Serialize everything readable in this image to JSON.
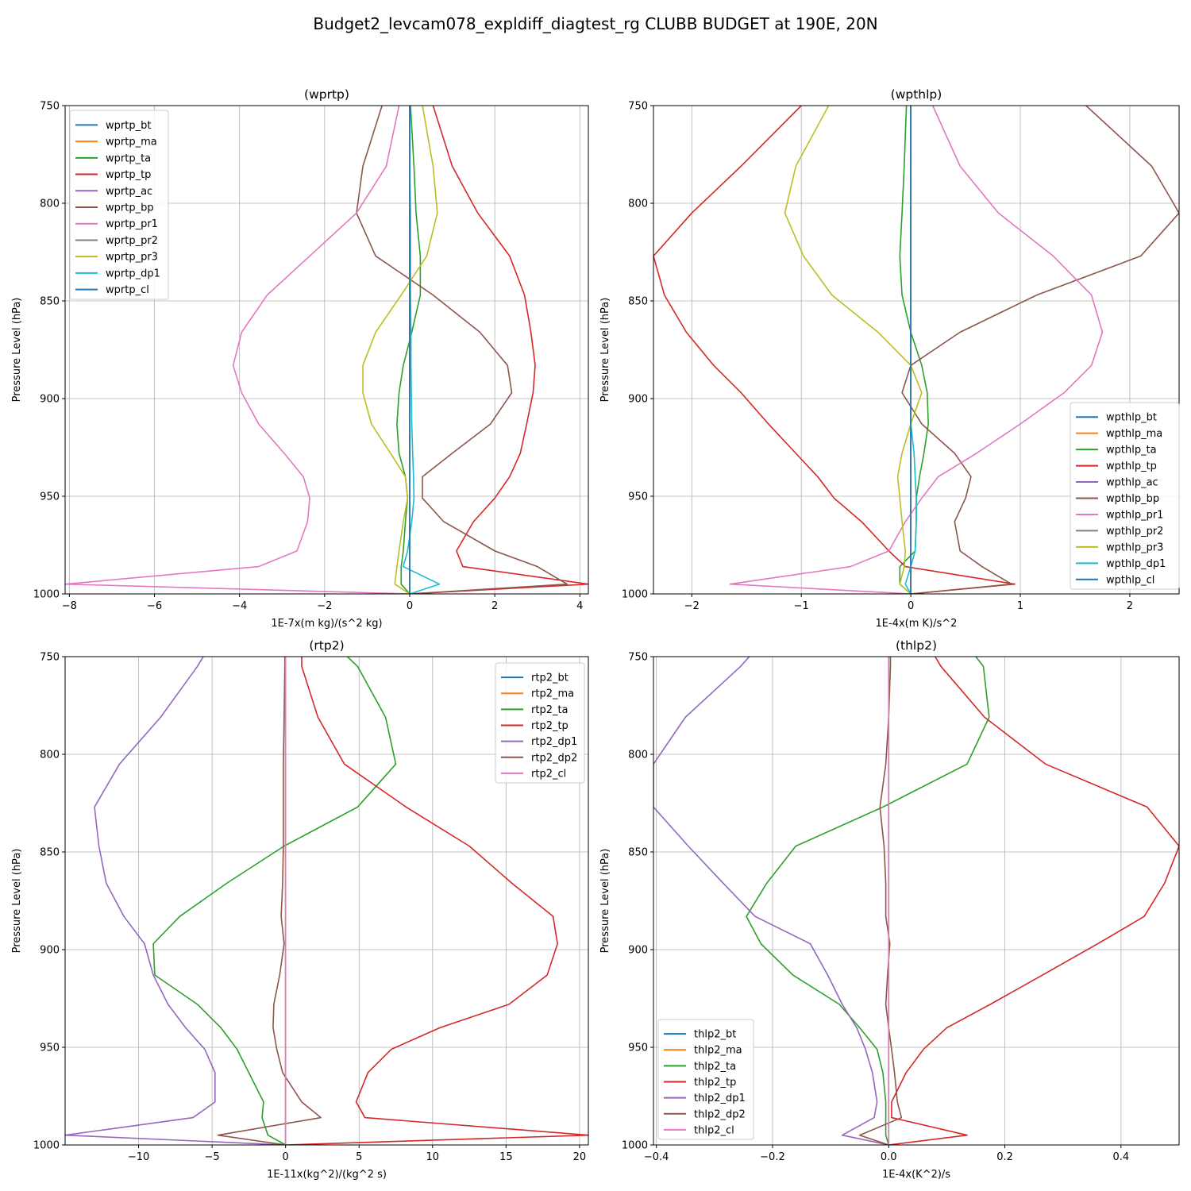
{
  "figure_title": "Budget2_levcam078_expldiff_diagtest_rg CLUBB BUDGET at 190E, 20N",
  "chart_data": [
    {
      "type": "line",
      "title": "(wprtp)",
      "xlabel": "1E-7x(m kg)/(s^2 kg)",
      "ylabel": "Pressure Level (hPa)",
      "xlim": [
        -8.1,
        4.2
      ],
      "ylim": [
        1000,
        750
      ],
      "xticks": [
        -8,
        -6,
        -4,
        -2,
        0,
        2,
        4
      ],
      "xtick_labels": [
        "−8",
        "−6",
        "−4",
        "−2",
        "0",
        "2",
        "4"
      ],
      "yticks": [
        750,
        800,
        850,
        900,
        950,
        1000
      ],
      "ytick_labels": [
        "750",
        "800",
        "850",
        "900",
        "950",
        "1000"
      ],
      "grid": true,
      "legend_position": "upper-left",
      "levels": [
        750,
        781,
        805,
        827,
        847,
        866,
        883,
        897,
        913,
        928,
        940,
        951,
        963,
        978,
        986,
        995,
        1000
      ],
      "series": [
        {
          "name": "wprtp_bt",
          "color": "#1f77b4",
          "values": [
            0,
            0,
            0,
            0,
            0,
            0,
            0,
            0,
            0,
            0,
            0,
            0,
            0,
            0,
            0,
            0,
            0
          ]
        },
        {
          "name": "wprtp_ma",
          "color": "#ff7f0e",
          "values": [
            0,
            0,
            0,
            0,
            0,
            0,
            0,
            0,
            0,
            0,
            0,
            0,
            0,
            0,
            0,
            0,
            0
          ]
        },
        {
          "name": "wprtp_ta",
          "color": "#2ca02c",
          "values": [
            0.02,
            0.1,
            0.15,
            0.25,
            0.25,
            0.05,
            -0.15,
            -0.25,
            -0.3,
            -0.25,
            -0.1,
            -0.05,
            -0.1,
            -0.15,
            -0.2,
            -0.2,
            0
          ]
        },
        {
          "name": "wprtp_tp",
          "color": "#d62728",
          "values": [
            0.55,
            1.0,
            1.6,
            2.35,
            2.7,
            2.85,
            2.95,
            2.9,
            2.75,
            2.6,
            2.35,
            2.0,
            1.5,
            1.1,
            1.25,
            4.2,
            0
          ]
        },
        {
          "name": "wprtp_ac",
          "color": "#9467bd",
          "values": [
            0,
            0,
            0,
            0,
            0,
            0,
            0,
            0,
            0,
            0,
            0,
            0,
            0,
            0,
            0,
            0,
            0
          ]
        },
        {
          "name": "wprtp_bp",
          "color": "#8c564b",
          "values": [
            -0.65,
            -1.1,
            -1.25,
            -0.8,
            0.55,
            1.65,
            2.3,
            2.4,
            1.9,
            1.0,
            0.3,
            0.3,
            0.8,
            2.0,
            3.0,
            3.7,
            0
          ]
        },
        {
          "name": "wprtp_pr1",
          "color": "#e377c2",
          "values": [
            -0.25,
            -0.55,
            -1.25,
            -2.35,
            -3.35,
            -3.95,
            -4.15,
            -3.95,
            -3.55,
            -2.95,
            -2.5,
            -2.35,
            -2.4,
            -2.65,
            -3.55,
            -8.1,
            0
          ]
        },
        {
          "name": "wprtp_pr2",
          "color": "#7f7f7f",
          "values": [
            0,
            0,
            0,
            0,
            0,
            0,
            0,
            0,
            0,
            0,
            0,
            0,
            0,
            0,
            0,
            0,
            0
          ]
        },
        {
          "name": "wprtp_pr3",
          "color": "#bcbd22",
          "values": [
            0.3,
            0.55,
            0.65,
            0.4,
            -0.2,
            -0.8,
            -1.1,
            -1.1,
            -0.9,
            -0.45,
            -0.1,
            -0.05,
            -0.15,
            -0.25,
            -0.3,
            -0.35,
            0
          ]
        },
        {
          "name": "wprtp_dp1",
          "color": "#17becf",
          "values": [
            0,
            0,
            0.02,
            0.02,
            0.02,
            0.03,
            0.03,
            0.04,
            0.05,
            0.07,
            0.09,
            0.1,
            0.05,
            -0.05,
            -0.15,
            0.7,
            0
          ]
        },
        {
          "name": "wprtp_cl",
          "color": "#1f77b4",
          "values": [
            0,
            0,
            0,
            0,
            0,
            0,
            0,
            0,
            0,
            0,
            0,
            0,
            0,
            0,
            0,
            0,
            0
          ]
        }
      ]
    },
    {
      "type": "line",
      "title": "(wpthlp)",
      "xlabel": "1E-4x(m K)/s^2",
      "ylabel": "Pressure Level (hPa)",
      "xlim": [
        -2.35,
        2.45
      ],
      "ylim": [
        1000,
        750
      ],
      "xticks": [
        -2,
        -1,
        0,
        1,
        2
      ],
      "xtick_labels": [
        "−2",
        "−1",
        "0",
        "1",
        "2"
      ],
      "yticks": [
        750,
        800,
        850,
        900,
        950,
        1000
      ],
      "ytick_labels": [
        "750",
        "800",
        "850",
        "900",
        "950",
        "1000"
      ],
      "grid": true,
      "legend_position": "lower-right",
      "levels": [
        750,
        781,
        805,
        827,
        847,
        866,
        883,
        897,
        913,
        928,
        940,
        951,
        963,
        978,
        986,
        995,
        1000
      ],
      "series": [
        {
          "name": "wpthlp_bt",
          "color": "#1f77b4",
          "values": [
            0,
            0,
            0,
            0,
            0,
            0,
            0,
            0,
            0,
            0,
            0,
            0,
            0,
            0,
            0,
            0,
            0
          ]
        },
        {
          "name": "wpthlp_ma",
          "color": "#ff7f0e",
          "values": [
            0,
            0,
            0,
            0,
            0,
            0,
            0,
            0,
            0,
            0,
            0,
            0,
            0,
            0,
            0,
            0,
            0
          ]
        },
        {
          "name": "wpthlp_ta",
          "color": "#2ca02c",
          "values": [
            -0.04,
            -0.06,
            -0.08,
            -0.1,
            -0.08,
            0,
            0.1,
            0.15,
            0.16,
            0.12,
            0.08,
            0.05,
            0.05,
            0.04,
            -0.1,
            -0.1,
            0
          ]
        },
        {
          "name": "wpthlp_tp",
          "color": "#d62728",
          "values": [
            -1.0,
            -1.55,
            -2.0,
            -2.35,
            -2.25,
            -2.05,
            -1.8,
            -1.55,
            -1.3,
            -1.05,
            -0.85,
            -0.7,
            -0.45,
            -0.2,
            -0.05,
            0.95,
            0
          ]
        },
        {
          "name": "wpthlp_ac",
          "color": "#9467bd",
          "values": [
            0,
            0,
            0,
            0,
            0,
            0,
            0,
            0,
            0,
            0,
            0,
            0,
            0,
            0,
            0,
            0,
            0
          ]
        },
        {
          "name": "wpthlp_bp",
          "color": "#8c564b",
          "values": [
            1.6,
            2.2,
            2.45,
            2.1,
            1.15,
            0.45,
            0.0,
            -0.08,
            0.1,
            0.4,
            0.55,
            0.5,
            0.4,
            0.45,
            0.65,
            0.92,
            0
          ]
        },
        {
          "name": "wpthlp_pr1",
          "color": "#e377c2",
          "values": [
            0.2,
            0.45,
            0.8,
            1.3,
            1.65,
            1.75,
            1.65,
            1.4,
            1.0,
            0.6,
            0.25,
            0.1,
            -0.05,
            -0.2,
            -0.55,
            -1.65,
            0
          ]
        },
        {
          "name": "wpthlp_pr2",
          "color": "#7f7f7f",
          "values": [
            0,
            0,
            0,
            0,
            0,
            0,
            0,
            0,
            0,
            0,
            0,
            0,
            0,
            0,
            0,
            0,
            0
          ]
        },
        {
          "name": "wpthlp_pr3",
          "color": "#bcbd22",
          "values": [
            -0.75,
            -1.05,
            -1.15,
            -0.98,
            -0.72,
            -0.3,
            0.0,
            0.1,
            0.0,
            -0.08,
            -0.12,
            -0.1,
            -0.08,
            -0.05,
            -0.06,
            -0.1,
            0
          ]
        },
        {
          "name": "wpthlp_dp1",
          "color": "#17becf",
          "values": [
            0,
            0,
            0,
            0,
            0,
            0,
            0,
            0,
            0,
            0.03,
            0.04,
            0.05,
            0.05,
            0.04,
            0.0,
            -0.05,
            0
          ]
        },
        {
          "name": "wpthlp_cl",
          "color": "#1f77b4",
          "values": [
            0,
            0,
            0,
            0,
            0,
            0,
            0,
            0,
            0,
            0,
            0,
            0,
            0,
            0,
            0,
            0,
            0
          ]
        }
      ]
    },
    {
      "type": "line",
      "title": "(rtp2)",
      "xlabel": "1E-11x(kg^2)/(kg^2 s)",
      "ylabel": "Pressure Level (hPa)",
      "xlim": [
        -15,
        20.6
      ],
      "ylim": [
        1000,
        750
      ],
      "xticks": [
        -10,
        -5,
        0,
        5,
        10,
        15,
        20
      ],
      "xtick_labels": [
        "−10",
        "−5",
        "0",
        "5",
        "10",
        "15",
        "20"
      ],
      "yticks": [
        750,
        800,
        850,
        900,
        950,
        1000
      ],
      "ytick_labels": [
        "750",
        "800",
        "850",
        "900",
        "950",
        "1000"
      ],
      "grid": true,
      "legend_position": "upper-right",
      "levels": [
        750,
        755,
        781,
        805,
        827,
        847,
        866,
        883,
        897,
        913,
        928,
        940,
        951,
        963,
        978,
        986,
        995,
        1000
      ],
      "series": [
        {
          "name": "rtp2_bt",
          "color": "#1f77b4",
          "values": [
            0,
            0,
            0,
            0,
            0,
            0,
            0,
            0,
            0,
            0,
            0,
            0,
            0,
            0,
            0,
            0,
            0,
            0
          ]
        },
        {
          "name": "rtp2_ma",
          "color": "#ff7f0e",
          "values": [
            0,
            0,
            0,
            0,
            0,
            0,
            0,
            0,
            0,
            0,
            0,
            0,
            0,
            0,
            0,
            0,
            0,
            0
          ]
        },
        {
          "name": "rtp2_ta",
          "color": "#2ca02c",
          "values": [
            4.2,
            4.9,
            6.8,
            7.5,
            4.9,
            -0.1,
            -4.0,
            -7.2,
            -9.0,
            -8.9,
            -6.0,
            -4.4,
            -3.3,
            -2.5,
            -1.5,
            -1.6,
            -1.2,
            0
          ]
        },
        {
          "name": "rtp2_tp",
          "color": "#d62728",
          "values": [
            1.1,
            1.1,
            2.2,
            4.0,
            8.2,
            12.5,
            15.4,
            18.2,
            18.5,
            17.8,
            15.2,
            10.5,
            7.2,
            5.6,
            4.8,
            5.4,
            20.6,
            0
          ]
        },
        {
          "name": "rtp2_dp1",
          "color": "#9467bd",
          "values": [
            -5.6,
            -6.0,
            -8.5,
            -11.3,
            -13.0,
            -12.7,
            -12.2,
            -11.0,
            -9.6,
            -9.0,
            -8.0,
            -6.8,
            -5.5,
            -4.8,
            -4.8,
            -6.3,
            -15.0,
            0
          ]
        },
        {
          "name": "rtp2_dp2",
          "color": "#8c564b",
          "values": [
            -0.05,
            -0.05,
            -0.1,
            -0.15,
            -0.15,
            -0.15,
            -0.2,
            -0.3,
            -0.1,
            -0.4,
            -0.8,
            -0.85,
            -0.6,
            -0.2,
            1.1,
            2.4,
            -4.6,
            0
          ]
        },
        {
          "name": "rtp2_cl",
          "color": "#e377c2",
          "values": [
            0,
            0,
            0,
            0,
            0,
            0,
            0,
            0,
            0,
            0,
            0,
            0,
            0,
            0,
            0,
            0,
            0,
            0
          ]
        }
      ]
    },
    {
      "type": "line",
      "title": "(thlp2)",
      "xlabel": "1E-4x(K^2)/s",
      "ylabel": "Pressure Level (hPa)",
      "xlim": [
        -0.405,
        0.5
      ],
      "ylim": [
        1000,
        750
      ],
      "xticks": [
        -0.4,
        -0.2,
        0.0,
        0.2,
        0.4
      ],
      "xtick_labels": [
        "−0.4",
        "−0.2",
        "0.0",
        "0.2",
        "0.4"
      ],
      "yticks": [
        750,
        800,
        850,
        900,
        950,
        1000
      ],
      "ytick_labels": [
        "750",
        "800",
        "850",
        "900",
        "950",
        "1000"
      ],
      "grid": true,
      "legend_position": "lower-left",
      "levels": [
        750,
        755,
        781,
        805,
        827,
        847,
        866,
        883,
        897,
        913,
        928,
        940,
        951,
        963,
        978,
        986,
        995,
        1000
      ],
      "series": [
        {
          "name": "thlp2_bt",
          "color": "#1f77b4",
          "values": [
            0,
            0,
            0,
            0,
            0,
            0,
            0,
            0,
            0,
            0,
            0,
            0,
            0,
            0,
            0,
            0,
            0,
            0
          ]
        },
        {
          "name": "thlp2_ma",
          "color": "#ff7f0e",
          "values": [
            0,
            0,
            0,
            0,
            0,
            0,
            0,
            0,
            0,
            0,
            0,
            0,
            0,
            0,
            0,
            0,
            0,
            0
          ]
        },
        {
          "name": "thlp2_ta",
          "color": "#2ca02c",
          "values": [
            0.15,
            0.163,
            0.173,
            0.135,
            -0.01,
            -0.16,
            -0.21,
            -0.245,
            -0.22,
            -0.165,
            -0.085,
            -0.05,
            -0.02,
            -0.01,
            -0.005,
            -0.005,
            -0.005,
            0
          ]
        },
        {
          "name": "thlp2_tp",
          "color": "#d62728",
          "values": [
            0.08,
            0.09,
            0.165,
            0.27,
            0.445,
            0.5,
            0.475,
            0.44,
            0.36,
            0.265,
            0.175,
            0.1,
            0.06,
            0.03,
            0.005,
            0.005,
            0.135,
            0
          ]
        },
        {
          "name": "thlp2_dp1",
          "color": "#9467bd",
          "values": [
            -0.24,
            -0.255,
            -0.35,
            -0.405,
            -0.405,
            -0.345,
            -0.285,
            -0.23,
            -0.135,
            -0.105,
            -0.08,
            -0.055,
            -0.04,
            -0.028,
            -0.02,
            -0.025,
            -0.08,
            0
          ]
        },
        {
          "name": "thlp2_dp2",
          "color": "#8c564b",
          "values": [
            0.003,
            0.003,
            0.0,
            -0.005,
            -0.015,
            -0.008,
            -0.005,
            -0.005,
            0.002,
            -0.002,
            -0.005,
            0.0,
            0.005,
            0.01,
            0.015,
            0.022,
            -0.05,
            0
          ]
        },
        {
          "name": "thlp2_cl",
          "color": "#e377c2",
          "values": [
            0,
            0,
            0,
            0,
            0,
            0,
            0,
            0,
            0,
            0,
            0,
            0,
            0,
            0,
            0,
            0,
            0,
            0
          ]
        }
      ]
    }
  ]
}
